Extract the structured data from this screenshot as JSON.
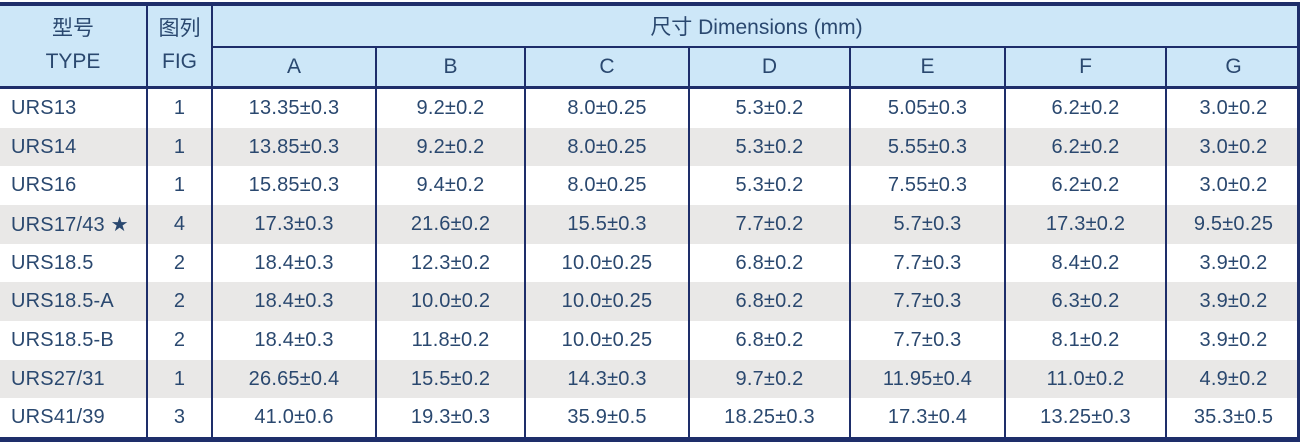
{
  "colors": {
    "header_bg": "#cde7f8",
    "row_stripe": "#e9e8e7",
    "row_plain": "#ffffff",
    "border_navy": "#1e2e6a",
    "text_navy": "#2a486f"
  },
  "table": {
    "header": {
      "type_zh": "型号",
      "type_en": "TYPE",
      "fig_zh": "图列",
      "fig_en": "FIG",
      "dimensions_title": "尺寸 Dimensions (mm)",
      "dimension_columns": [
        "A",
        "B",
        "C",
        "D",
        "E",
        "F",
        "G"
      ]
    },
    "rows": [
      {
        "type": "URS13",
        "fig": "1",
        "dims": [
          "13.35±0.3",
          "9.2±0.2",
          "8.0±0.25",
          "5.3±0.2",
          "5.05±0.3",
          "6.2±0.2",
          "3.0±0.2"
        ]
      },
      {
        "type": "URS14",
        "fig": "1",
        "dims": [
          "13.85±0.3",
          "9.2±0.2",
          "8.0±0.25",
          "5.3±0.2",
          "5.55±0.3",
          "6.2±0.2",
          "3.0±0.2"
        ]
      },
      {
        "type": "URS16",
        "fig": "1",
        "dims": [
          "15.85±0.3",
          "9.4±0.2",
          "8.0±0.25",
          "5.3±0.2",
          "7.55±0.3",
          "6.2±0.2",
          "3.0±0.2"
        ]
      },
      {
        "type": "URS17/43 ★",
        "fig": "4",
        "dims": [
          "17.3±0.3",
          "21.6±0.2",
          "15.5±0.3",
          "7.7±0.2",
          "5.7±0.3",
          "17.3±0.2",
          "9.5±0.25"
        ]
      },
      {
        "type": "URS18.5",
        "fig": "2",
        "dims": [
          "18.4±0.3",
          "12.3±0.2",
          "10.0±0.25",
          "6.8±0.2",
          "7.7±0.3",
          "8.4±0.2",
          "3.9±0.2"
        ]
      },
      {
        "type": "URS18.5-A",
        "fig": "2",
        "dims": [
          "18.4±0.3",
          "10.0±0.2",
          "10.0±0.25",
          "6.8±0.2",
          "7.7±0.3",
          "6.3±0.2",
          "3.9±0.2"
        ]
      },
      {
        "type": "URS18.5-B",
        "fig": "2",
        "dims": [
          "18.4±0.3",
          "11.8±0.2",
          "10.0±0.25",
          "6.8±0.2",
          "7.7±0.3",
          "8.1±0.2",
          "3.9±0.2"
        ]
      },
      {
        "type": "URS27/31",
        "fig": "1",
        "dims": [
          "26.65±0.4",
          "15.5±0.2",
          "14.3±0.3",
          "9.7±0.2",
          "11.95±0.4",
          "11.0±0.2",
          "4.9±0.2"
        ]
      },
      {
        "type": "URS41/39",
        "fig": "3",
        "dims": [
          "41.0±0.6",
          "19.3±0.3",
          "35.9±0.5",
          "18.25±0.3",
          "17.3±0.4",
          "13.25±0.3",
          "35.3±0.5"
        ]
      }
    ]
  }
}
